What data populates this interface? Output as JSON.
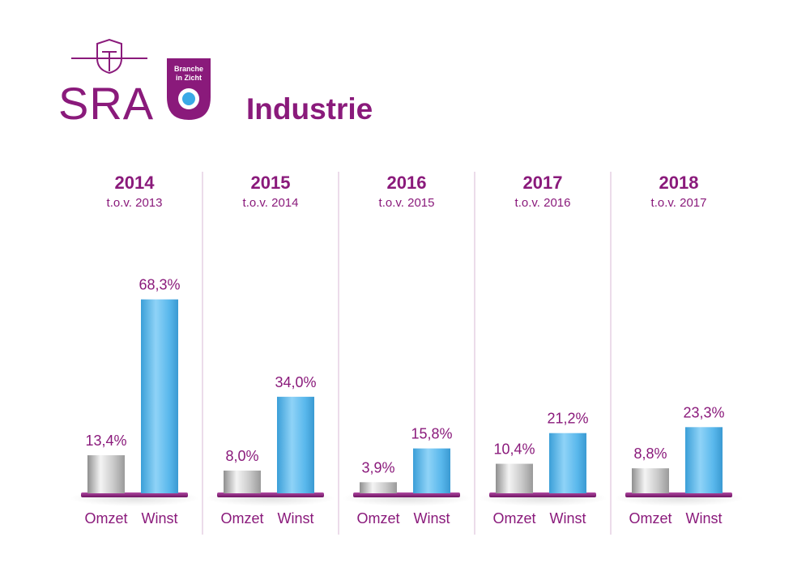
{
  "brand": {
    "logo_text": "SRA",
    "badge_line1": "Branche",
    "badge_line2": "in Zicht",
    "title": "Industrie"
  },
  "colors": {
    "purple": "#8a1a7b",
    "divider": "#d9b8d4",
    "omzet": "#bdbdbd",
    "winst": "#5ab8ec",
    "badge_dot": "#3aa9e6"
  },
  "chart_data": {
    "type": "bar",
    "series": [
      {
        "name": "Omzet"
      },
      {
        "name": "Winst"
      }
    ],
    "groups": [
      {
        "year": "2014",
        "sub": "t.o.v. 2013",
        "omzet": 13.4,
        "winst": 68.3,
        "omzet_label": "13,4%",
        "winst_label": "68,3%"
      },
      {
        "year": "2015",
        "sub": "t.o.v. 2014",
        "omzet": 8.0,
        "winst": 34.0,
        "omzet_label": "8,0%",
        "winst_label": "34,0%"
      },
      {
        "year": "2016",
        "sub": "t.o.v. 2015",
        "omzet": 3.9,
        "winst": 15.8,
        "omzet_label": "3,9%",
        "winst_label": "15,8%"
      },
      {
        "year": "2017",
        "sub": "t.o.v. 2016",
        "omzet": 10.4,
        "winst": 21.2,
        "omzet_label": "10,4%",
        "winst_label": "21,2%"
      },
      {
        "year": "2018",
        "sub": "t.o.v. 2017",
        "omzet": 8.8,
        "winst": 23.3,
        "omzet_label": "8,8%",
        "winst_label": "23,3%"
      }
    ]
  }
}
